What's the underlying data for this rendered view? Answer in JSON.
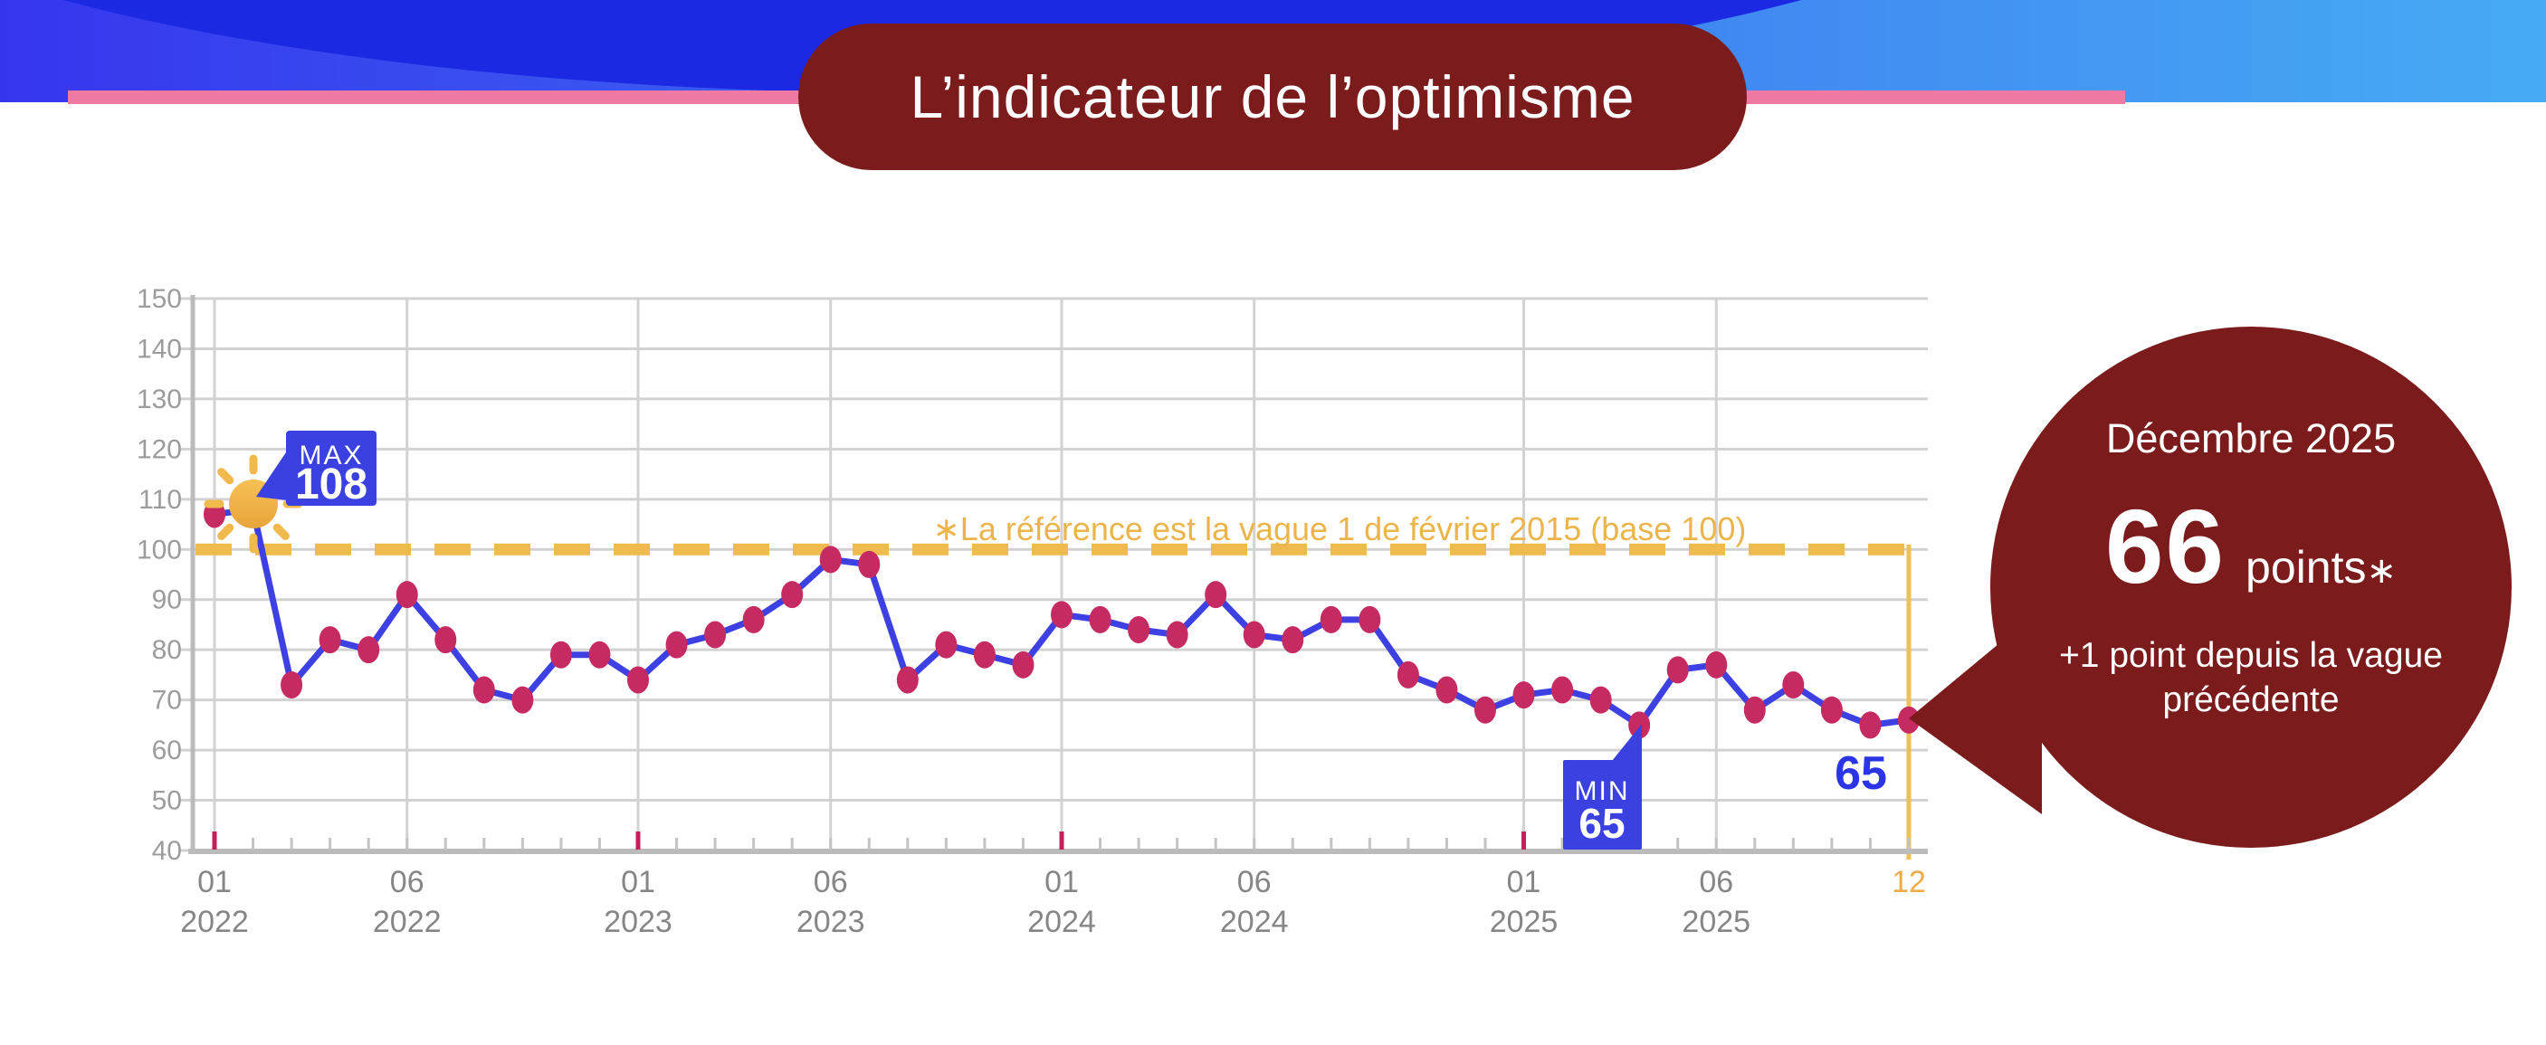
{
  "header": {
    "title": "L’indicateur de l’optimisme"
  },
  "chart_data": {
    "type": "line",
    "title": "L’indicateur de l’optimisme",
    "ylim": [
      40,
      150
    ],
    "yticks": [
      150,
      140,
      130,
      120,
      110,
      100,
      90,
      80,
      70,
      60,
      50,
      40
    ],
    "grid": true,
    "baseline": {
      "value": 100,
      "annotation": "∗La référence est la vague 1 de février 2015 (base 100)"
    },
    "x": [
      "01/2022",
      "02/2022",
      "03/2022",
      "04/2022",
      "05/2022",
      "06/2022",
      "07/2022",
      "09/2022",
      "10/2022",
      "11/2022",
      "12/2022",
      "01/2023",
      "02/2023",
      "03/2023",
      "04/2023",
      "05/2023",
      "06/2023",
      "07/2023",
      "09/2023",
      "10/2023",
      "11/2023",
      "12/2023",
      "01/2024",
      "02/2024",
      "03/2024",
      "04/2024",
      "05/2024",
      "06/2024",
      "07/2024",
      "08/2024",
      "09/2024",
      "10/2024",
      "11/2024",
      "12/2024",
      "01/2025",
      "02/2025",
      "03/2025",
      "04/2025",
      "05/2025",
      "06/2025",
      "07/2025",
      "09/2025",
      "10/2025",
      "11/2025",
      "12/2025"
    ],
    "values": [
      107,
      108,
      73,
      82,
      80,
      91,
      82,
      72,
      70,
      79,
      79,
      74,
      81,
      83,
      86,
      91,
      98,
      97,
      74,
      81,
      79,
      77,
      87,
      86,
      84,
      83,
      91,
      83,
      82,
      86,
      86,
      75,
      72,
      68,
      71,
      72,
      70,
      65,
      76,
      77,
      68,
      73,
      68,
      65,
      66
    ],
    "wave_labels": [
      {
        "slot": 0,
        "month": "01",
        "year": "2022",
        "january": true
      },
      {
        "slot": 5,
        "month": "06",
        "year": "2022"
      },
      {
        "slot": 11,
        "month": "01",
        "year": "2023",
        "january": true
      },
      {
        "slot": 16,
        "month": "06",
        "year": "2023"
      },
      {
        "slot": 22,
        "month": "01",
        "year": "2024",
        "january": true
      },
      {
        "slot": 27,
        "month": "06",
        "year": "2024"
      },
      {
        "slot": 34,
        "month": "01",
        "year": "2025",
        "january": true
      },
      {
        "slot": 39,
        "month": "06",
        "year": "2025"
      },
      {
        "slot": 44,
        "month": "12",
        "year": "",
        "current": true
      }
    ],
    "max_badge": {
      "label": "MAX",
      "value": "108",
      "slot": 1
    },
    "min_badge": {
      "label": "MIN",
      "value": "65",
      "slot": 37
    },
    "prev_point_label": {
      "text": "65",
      "slot": 43
    },
    "sun_slot": 1
  },
  "callout": {
    "date": "Décembre 2025",
    "value": "66",
    "unit": "points",
    "asterisk": "∗",
    "delta": "+1 point depuis la vague précédente"
  },
  "colors": {
    "maroon": "#7B1B1B",
    "line": "#3D41E4",
    "dot": "#C62A62",
    "badge": "#3A41E0",
    "amber": "#EFBA4E",
    "amberText": "#EBB54B",
    "orangeLine": "#EFC052",
    "orangeLabel": "#ECAC49",
    "grid": "#D2D2D2",
    "axis": "#BBBBBB",
    "ylabel": "#9C9C9C",
    "xlabel": "#868686",
    "redTick": "#C2205A",
    "blue65": "#2B35E6",
    "pink": "#EE7AA3",
    "bannerFrom": "#3636EF",
    "bannerMid": "#3E7BF0",
    "bannerTo": "#47ABF4",
    "ellipse": "#1C29E3",
    "sun": "#F2B94C"
  }
}
